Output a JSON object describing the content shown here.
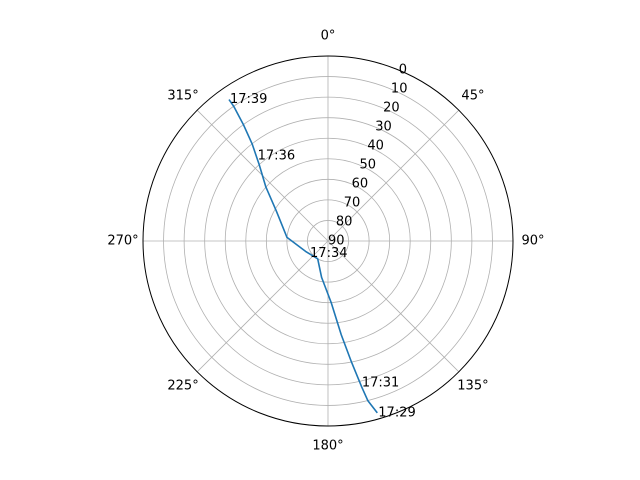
{
  "chart_data": {
    "type": "line",
    "projection": "polar",
    "theta_zero": "top",
    "theta_direction": "clockwise",
    "radial_axis": "elevation",
    "r_range": [
      90,
      0
    ],
    "r_ticks": [
      "0",
      "10",
      "20",
      "30",
      "40",
      "50",
      "60",
      "70",
      "80",
      "90"
    ],
    "theta_ticks": [
      "0°",
      "45°",
      "90°",
      "135°",
      "180°",
      "225°",
      "270°",
      "315°"
    ],
    "grid": true,
    "series": [
      {
        "color": "#1f77b4",
        "points": [
          {
            "az": 164,
            "el": 3
          },
          {
            "az": 166,
            "el": 10
          },
          {
            "az": 167,
            "el": 17
          },
          {
            "az": 169,
            "el": 30
          },
          {
            "az": 172,
            "el": 44
          },
          {
            "az": 177,
            "el": 60
          },
          {
            "az": 190,
            "el": 72
          },
          {
            "az": 210,
            "el": 80
          },
          {
            "az": 245,
            "el": 78
          },
          {
            "az": 275,
            "el": 70
          },
          {
            "az": 300,
            "el": 61
          },
          {
            "az": 311,
            "el": 50
          },
          {
            "az": 318,
            "el": 40
          },
          {
            "az": 322,
            "el": 30
          },
          {
            "az": 324,
            "el": 20
          },
          {
            "az": 325,
            "el": 10
          },
          {
            "az": 325,
            "el": 6
          }
        ],
        "time_labels": [
          {
            "text": "17:29",
            "az": 164,
            "el": 3
          },
          {
            "text": "17:31",
            "az": 167,
            "el": 19
          },
          {
            "text": "17:34",
            "az": 237,
            "el": 79
          },
          {
            "text": "17:36",
            "az": 320,
            "el": 36
          },
          {
            "text": "17:39",
            "az": 325,
            "el": 6
          }
        ]
      }
    ]
  }
}
